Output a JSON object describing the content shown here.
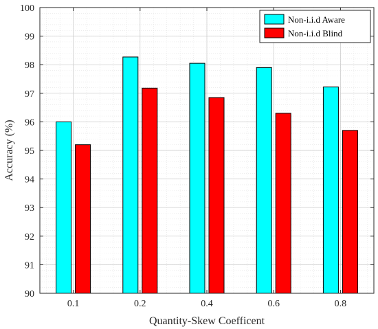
{
  "chart_data": {
    "type": "bar",
    "xlabel": "Quantity-Skew Coefficent",
    "ylabel": "Accuracy (%)",
    "categories": [
      "0.1",
      "0.2",
      "0.4",
      "0.6",
      "0.8"
    ],
    "series": [
      {
        "name": "Non-i.i.d Aware",
        "values": [
          96.0,
          98.27,
          98.05,
          97.9,
          97.22
        ],
        "color": "#00FFFF"
      },
      {
        "name": "Non-i.i.d Blind",
        "values": [
          95.2,
          97.18,
          96.85,
          96.3,
          95.7
        ],
        "color": "#FF0000"
      }
    ],
    "ylim": [
      90,
      100
    ],
    "yticks": [
      90,
      91,
      92,
      93,
      94,
      95,
      96,
      97,
      98,
      99,
      100
    ],
    "grid": true,
    "minor_grid": true,
    "legend_position": "top-right"
  }
}
